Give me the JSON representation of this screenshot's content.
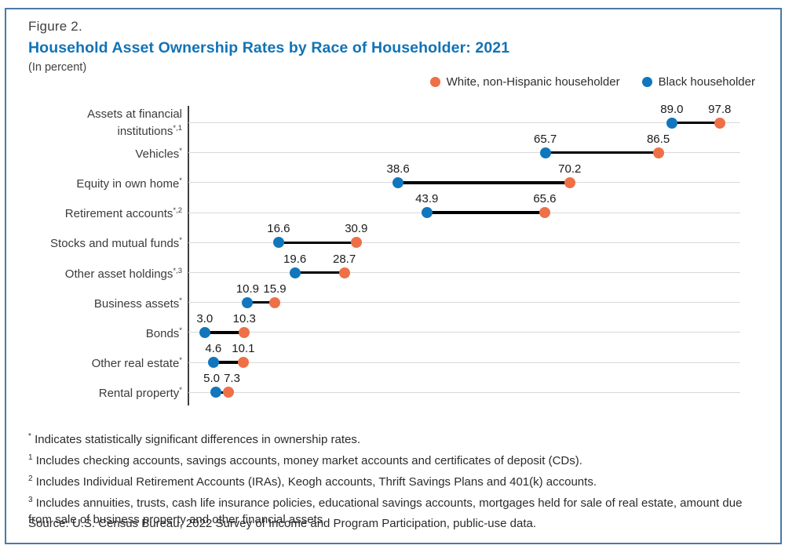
{
  "figure": {
    "label": "Figure 2.",
    "title": "Household Asset Ownership Rates by Race of Householder: 2021",
    "subtitle": "(In percent)"
  },
  "legend": [
    {
      "series": "white",
      "label": "White, non-Hispanic householder",
      "color": "#ee7046"
    },
    {
      "series": "black",
      "label": "Black householder",
      "color": "#1176bc"
    }
  ],
  "chart_data": {
    "type": "dumbbell-dot",
    "orientation": "horizontal",
    "unit": "percent",
    "xlim": [
      0,
      102
    ],
    "grid": "light horizontal line per category row",
    "legend_position": "top-right",
    "categories": [
      {
        "label": "Assets at financial institutions",
        "sup": "*,1"
      },
      {
        "label": "Vehicles",
        "sup": "*"
      },
      {
        "label": "Equity in own home",
        "sup": "*"
      },
      {
        "label": "Retirement accounts",
        "sup": "*,2"
      },
      {
        "label": "Stocks and mutual funds",
        "sup": "*"
      },
      {
        "label": "Other asset holdings",
        "sup": "*,3"
      },
      {
        "label": "Business assets",
        "sup": "*"
      },
      {
        "label": "Bonds",
        "sup": "*"
      },
      {
        "label": "Other real estate",
        "sup": "*"
      },
      {
        "label": "Rental property",
        "sup": "*"
      }
    ],
    "series": [
      {
        "name": "White, non-Hispanic householder",
        "color": "#ee7046",
        "values": [
          97.8,
          86.5,
          70.2,
          65.6,
          30.9,
          28.7,
          15.9,
          10.3,
          10.1,
          7.3
        ]
      },
      {
        "name": "Black householder",
        "color": "#1176bc",
        "values": [
          89.0,
          65.7,
          38.6,
          43.9,
          16.6,
          19.6,
          10.9,
          3.0,
          4.6,
          5.0
        ]
      }
    ]
  },
  "footnotes": [
    {
      "marker": "*",
      "text": "Indicates statistically significant differences in ownership rates."
    },
    {
      "marker": "1",
      "text": "Includes checking accounts, savings accounts, money market accounts and certificates of deposit (CDs)."
    },
    {
      "marker": "2",
      "text": "Includes Individual Retirement Accounts (IRAs), Keogh accounts, Thrift Savings Plans and 401(k) accounts."
    },
    {
      "marker": "3",
      "text": "Includes annuities, trusts, cash life insurance policies, educational savings accounts, mortgages held for sale of real estate, amount due from sale of business property and other financial assets."
    }
  ],
  "source": "Source: U.S. Census Bureau, 2022 Survey of Income and Program Participation, public-use data.",
  "colors": {
    "title": "#1273b6",
    "border": "#4a7aa8",
    "white_series": "#ee7046",
    "black_series": "#1176bc",
    "gridline": "#d9d9d9",
    "axis": "#3f3f3f",
    "connector": "#000000"
  }
}
